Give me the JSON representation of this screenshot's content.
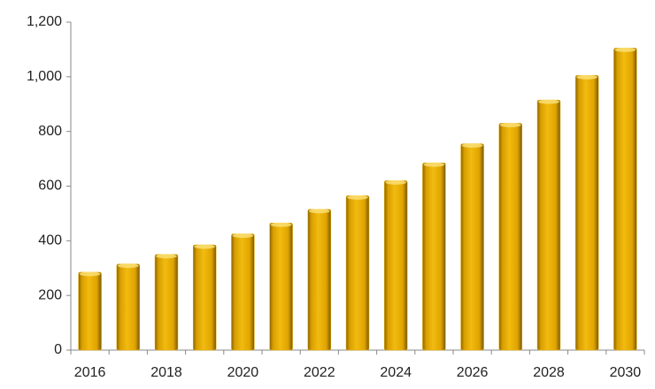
{
  "chart_data": {
    "type": "bar",
    "categories": [
      "2016",
      null,
      "2018",
      null,
      "2020",
      null,
      "2022",
      null,
      "2024",
      null,
      "2026",
      null,
      "2028",
      null,
      "2030"
    ],
    "values": [
      285,
      315,
      350,
      385,
      425,
      465,
      515,
      565,
      620,
      685,
      755,
      830,
      915,
      1005,
      1105
    ],
    "color": "#e8ad00",
    "ylim": [
      0,
      1200
    ],
    "yticks": [
      0,
      200,
      400,
      600,
      800,
      {
        "value": 1000,
        "label": "1,000"
      },
      {
        "value": 1200,
        "label": "1,200"
      }
    ],
    "grid": false
  }
}
